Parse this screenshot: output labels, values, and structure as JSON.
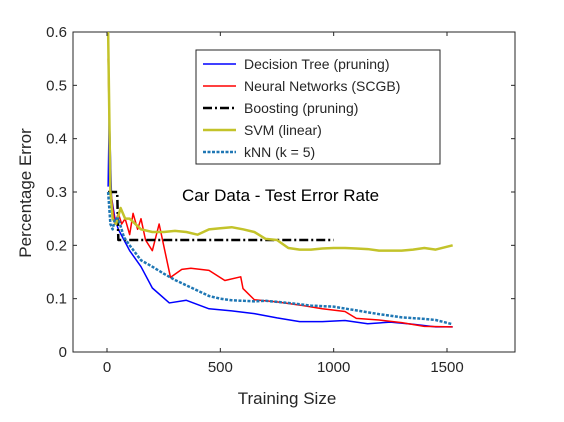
{
  "chart_data": {
    "type": "line",
    "title": "",
    "annotation": "Car Data - Test Error Rate",
    "xlabel": "Training Size",
    "ylabel": "Percentage Error",
    "xlim": [
      -150,
      1800
    ],
    "ylim": [
      0,
      0.6
    ],
    "xticks": [
      0,
      500,
      1000,
      1500
    ],
    "yticks": [
      0,
      0.1,
      0.2,
      0.3,
      0.4,
      0.5,
      0.6
    ],
    "xtick_labels": [
      "0",
      "500",
      "1000",
      "1500"
    ],
    "ytick_labels": [
      "0",
      "0.1",
      "0.2",
      "0.3",
      "0.4",
      "0.5",
      "0.6"
    ],
    "grid": false,
    "legend_position": "top-right",
    "series": [
      {
        "name": "Decision Tree (pruning)",
        "color": "#0000ff",
        "dash": "solid",
        "width": 1.5,
        "x": [
          5,
          10,
          20,
          35,
          50,
          75,
          100,
          150,
          200,
          275,
          350,
          450,
          550,
          650,
          700,
          750,
          850,
          950,
          1050,
          1150,
          1250,
          1350,
          1450,
          1525
        ],
        "y": [
          0.31,
          0.45,
          0.29,
          0.25,
          0.23,
          0.21,
          0.19,
          0.16,
          0.12,
          0.092,
          0.097,
          0.081,
          0.077,
          0.072,
          0.068,
          0.064,
          0.057,
          0.057,
          0.059,
          0.053,
          0.056,
          0.052,
          0.047,
          0.047
        ]
      },
      {
        "name": "Neural Networks (SCGB)",
        "color": "#ff0000",
        "dash": "solid",
        "width": 1.5,
        "x": [
          5,
          15,
          25,
          35,
          50,
          65,
          80,
          100,
          115,
          135,
          150,
          170,
          200,
          230,
          280,
          330,
          370,
          450,
          520,
          590,
          600,
          650,
          750,
          850,
          950,
          1050,
          1100,
          1200,
          1300,
          1400,
          1525
        ],
        "y": [
          0.55,
          0.31,
          0.27,
          0.24,
          0.26,
          0.24,
          0.25,
          0.22,
          0.26,
          0.23,
          0.25,
          0.21,
          0.19,
          0.24,
          0.14,
          0.155,
          0.157,
          0.153,
          0.134,
          0.141,
          0.119,
          0.098,
          0.094,
          0.088,
          0.081,
          0.076,
          0.063,
          0.06,
          0.055,
          0.048,
          0.047
        ]
      },
      {
        "name": "Boosting (pruning)",
        "color": "#000000",
        "dash": "dashdot",
        "width": 2.5,
        "x": [
          5,
          15,
          25,
          45,
          50,
          60,
          100,
          200,
          300,
          400,
          500,
          600,
          700,
          800,
          900,
          1000
        ],
        "y": [
          0.3,
          0.3,
          0.3,
          0.3,
          0.21,
          0.21,
          0.21,
          0.21,
          0.21,
          0.21,
          0.21,
          0.21,
          0.21,
          0.21,
          0.21,
          0.21
        ]
      },
      {
        "name": "SVM (linear)",
        "color": "#c3c32a",
        "dash": "solid",
        "width": 2.5,
        "x": [
          5,
          15,
          25,
          40,
          60,
          80,
          100,
          150,
          200,
          250,
          300,
          350,
          400,
          450,
          500,
          550,
          600,
          650,
          700,
          750,
          800,
          850,
          900,
          950,
          1000,
          1050,
          1100,
          1150,
          1200,
          1250,
          1300,
          1350,
          1400,
          1450,
          1525
        ],
        "y": [
          0.6,
          0.3,
          0.25,
          0.24,
          0.27,
          0.25,
          0.25,
          0.23,
          0.225,
          0.225,
          0.227,
          0.225,
          0.22,
          0.23,
          0.232,
          0.234,
          0.23,
          0.225,
          0.212,
          0.21,
          0.195,
          0.192,
          0.192,
          0.194,
          0.195,
          0.195,
          0.194,
          0.193,
          0.19,
          0.19,
          0.19,
          0.192,
          0.195,
          0.192,
          0.2
        ]
      },
      {
        "name": "kNN (k = 5)",
        "color": "#1f77b4",
        "dash": "dotted",
        "width": 2.5,
        "x": [
          5,
          15,
          25,
          35,
          50,
          75,
          100,
          150,
          200,
          250,
          300,
          350,
          400,
          450,
          500,
          550,
          600,
          650,
          700,
          800,
          900,
          1000,
          1100,
          1200,
          1300,
          1400,
          1450,
          1525
        ],
        "y": [
          0.3,
          0.24,
          0.23,
          0.25,
          0.25,
          0.215,
          0.2,
          0.172,
          0.16,
          0.147,
          0.135,
          0.125,
          0.115,
          0.105,
          0.1,
          0.097,
          0.096,
          0.095,
          0.096,
          0.092,
          0.087,
          0.085,
          0.078,
          0.071,
          0.065,
          0.062,
          0.06,
          0.052
        ]
      }
    ]
  }
}
